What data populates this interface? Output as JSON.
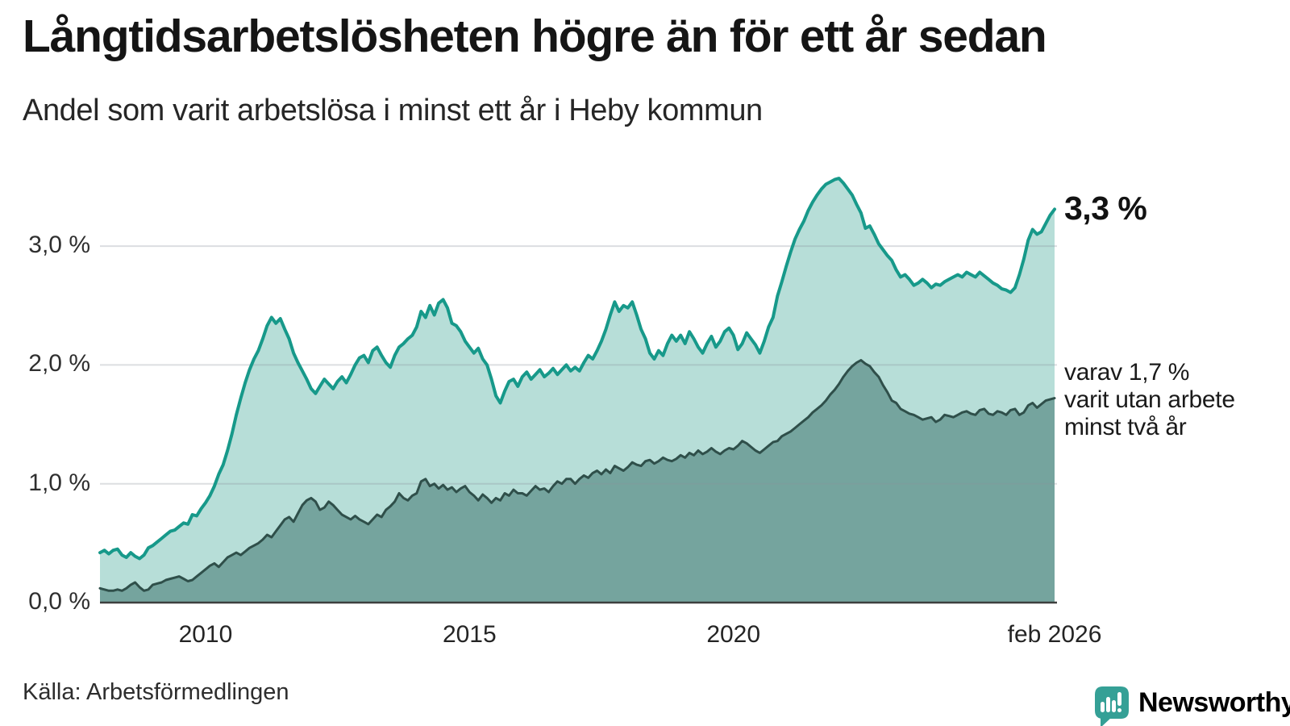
{
  "header": {
    "title": "Långtidsarbetslösheten högre än för ett år sedan",
    "subtitle": "Andel som varit arbetslösa i minst ett år i Heby kommun"
  },
  "footer": {
    "source": "Källa: Arbetsförmedlingen",
    "brand": {
      "name": "Newsworthy",
      "icon": "newsworthy-speech-bubble-bar-chart-icon",
      "color": "#2f9e94"
    }
  },
  "chart_data": {
    "type": "area",
    "title": "Långtidsarbetslösheten högre än för ett år sedan",
    "subtitle": "Andel som varit arbetslösa i minst ett år i Heby kommun",
    "unit": "%",
    "grid": true,
    "grid_color": "rgba(140,146,156,0.30)",
    "axis_line_color": "#3d3f3e",
    "x_axis": {
      "start": "2008-01",
      "end": "2026-02",
      "interval": "monthly",
      "ticks": [
        {
          "label": "2010",
          "month_index": 24
        },
        {
          "label": "2015",
          "month_index": 84
        },
        {
          "label": "2020",
          "month_index": 144
        },
        {
          "label": "feb 2026",
          "month_index": 217
        }
      ]
    },
    "y_axis": {
      "ylim": [
        0,
        3.7
      ],
      "ticks": [
        {
          "label": "0,0 %",
          "value": 0.0
        },
        {
          "label": "1,0 %",
          "value": 1.0
        },
        {
          "label": "2,0 %",
          "value": 2.0
        },
        {
          "label": "3,0 %",
          "value": 3.0
        }
      ]
    },
    "series": [
      {
        "name": "Andel som varit arbetslösa i minst ett år",
        "color": "#17998a",
        "fill": "#b7ded8",
        "values": [
          0.42,
          0.44,
          0.41,
          0.44,
          0.45,
          0.4,
          0.38,
          0.42,
          0.39,
          0.37,
          0.4,
          0.46,
          0.48,
          0.51,
          0.54,
          0.57,
          0.6,
          0.61,
          0.64,
          0.67,
          0.66,
          0.74,
          0.73,
          0.79,
          0.84,
          0.9,
          0.98,
          1.08,
          1.16,
          1.28,
          1.42,
          1.58,
          1.72,
          1.85,
          1.96,
          2.05,
          2.12,
          2.22,
          2.33,
          2.4,
          2.35,
          2.39,
          2.3,
          2.22,
          2.1,
          2.02,
          1.95,
          1.88,
          1.8,
          1.76,
          1.82,
          1.88,
          1.84,
          1.8,
          1.86,
          1.9,
          1.85,
          1.92,
          2.0,
          2.06,
          2.08,
          2.02,
          2.12,
          2.15,
          2.08,
          2.02,
          1.98,
          2.08,
          2.15,
          2.18,
          2.22,
          2.25,
          2.32,
          2.45,
          2.4,
          2.5,
          2.42,
          2.52,
          2.55,
          2.48,
          2.35,
          2.33,
          2.28,
          2.2,
          2.15,
          2.1,
          2.14,
          2.05,
          2.0,
          1.88,
          1.74,
          1.68,
          1.78,
          1.86,
          1.88,
          1.82,
          1.9,
          1.94,
          1.88,
          1.92,
          1.96,
          1.9,
          1.93,
          1.97,
          1.92,
          1.96,
          2.0,
          1.95,
          1.98,
          1.95,
          2.02,
          2.08,
          2.05,
          2.12,
          2.2,
          2.3,
          2.42,
          2.53,
          2.45,
          2.5,
          2.48,
          2.53,
          2.42,
          2.3,
          2.22,
          2.1,
          2.05,
          2.12,
          2.08,
          2.18,
          2.25,
          2.2,
          2.25,
          2.18,
          2.28,
          2.22,
          2.15,
          2.1,
          2.18,
          2.24,
          2.15,
          2.2,
          2.28,
          2.31,
          2.25,
          2.13,
          2.18,
          2.27,
          2.22,
          2.17,
          2.1,
          2.2,
          2.32,
          2.4,
          2.58,
          2.7,
          2.83,
          2.95,
          3.06,
          3.14,
          3.21,
          3.3,
          3.37,
          3.43,
          3.48,
          3.52,
          3.54,
          3.56,
          3.57,
          3.53,
          3.48,
          3.43,
          3.35,
          3.28,
          3.15,
          3.17,
          3.1,
          3.02,
          2.97,
          2.92,
          2.88,
          2.8,
          2.74,
          2.76,
          2.72,
          2.67,
          2.69,
          2.72,
          2.69,
          2.65,
          2.68,
          2.67,
          2.7,
          2.72,
          2.74,
          2.76,
          2.74,
          2.78,
          2.76,
          2.74,
          2.78,
          2.75,
          2.72,
          2.69,
          2.67,
          2.64,
          2.63,
          2.61,
          2.65,
          2.76,
          2.89,
          3.05,
          3.14,
          3.1,
          3.12,
          3.19,
          3.26,
          3.31
        ]
      },
      {
        "name": "varav utan arbete minst två år",
        "color": "#2f4f4a",
        "fill": "#75a49e",
        "values": [
          0.12,
          0.11,
          0.1,
          0.1,
          0.11,
          0.1,
          0.12,
          0.15,
          0.17,
          0.13,
          0.1,
          0.11,
          0.15,
          0.16,
          0.17,
          0.19,
          0.2,
          0.21,
          0.22,
          0.2,
          0.18,
          0.19,
          0.22,
          0.25,
          0.28,
          0.31,
          0.33,
          0.3,
          0.34,
          0.38,
          0.4,
          0.42,
          0.4,
          0.43,
          0.46,
          0.48,
          0.5,
          0.53,
          0.57,
          0.55,
          0.6,
          0.65,
          0.7,
          0.72,
          0.68,
          0.75,
          0.82,
          0.86,
          0.88,
          0.85,
          0.78,
          0.8,
          0.85,
          0.82,
          0.78,
          0.74,
          0.72,
          0.7,
          0.73,
          0.7,
          0.68,
          0.66,
          0.7,
          0.74,
          0.72,
          0.78,
          0.81,
          0.85,
          0.92,
          0.88,
          0.86,
          0.9,
          0.92,
          1.02,
          1.04,
          0.98,
          1.0,
          0.96,
          0.99,
          0.95,
          0.97,
          0.93,
          0.96,
          0.98,
          0.93,
          0.9,
          0.86,
          0.91,
          0.88,
          0.84,
          0.88,
          0.86,
          0.92,
          0.9,
          0.95,
          0.92,
          0.92,
          0.9,
          0.94,
          0.98,
          0.95,
          0.96,
          0.93,
          0.98,
          1.02,
          1.0,
          1.04,
          1.04,
          1.0,
          1.04,
          1.07,
          1.05,
          1.09,
          1.11,
          1.08,
          1.12,
          1.09,
          1.15,
          1.13,
          1.11,
          1.14,
          1.18,
          1.16,
          1.15,
          1.19,
          1.2,
          1.17,
          1.19,
          1.22,
          1.2,
          1.19,
          1.21,
          1.24,
          1.22,
          1.26,
          1.24,
          1.28,
          1.25,
          1.27,
          1.3,
          1.27,
          1.25,
          1.28,
          1.3,
          1.29,
          1.32,
          1.36,
          1.34,
          1.31,
          1.28,
          1.26,
          1.29,
          1.32,
          1.35,
          1.36,
          1.4,
          1.42,
          1.44,
          1.47,
          1.5,
          1.53,
          1.56,
          1.6,
          1.63,
          1.66,
          1.7,
          1.75,
          1.79,
          1.84,
          1.9,
          1.95,
          1.99,
          2.02,
          2.04,
          2.01,
          1.99,
          1.94,
          1.9,
          1.83,
          1.77,
          1.7,
          1.68,
          1.63,
          1.61,
          1.59,
          1.58,
          1.56,
          1.54,
          1.55,
          1.56,
          1.52,
          1.54,
          1.58,
          1.57,
          1.56,
          1.58,
          1.6,
          1.61,
          1.59,
          1.58,
          1.62,
          1.63,
          1.59,
          1.58,
          1.61,
          1.6,
          1.58,
          1.62,
          1.63,
          1.58,
          1.6,
          1.66,
          1.68,
          1.64,
          1.67,
          1.7,
          1.71,
          1.72
        ]
      }
    ],
    "annotations": [
      {
        "id": "latest-value",
        "text": "3,3 %",
        "series": 0,
        "at": "2026-02"
      },
      {
        "id": "series2-note",
        "series": 1,
        "at": "2026-02",
        "lines": [
          "varav 1,7 %",
          "varit utan arbete",
          "minst två år"
        ]
      }
    ]
  }
}
